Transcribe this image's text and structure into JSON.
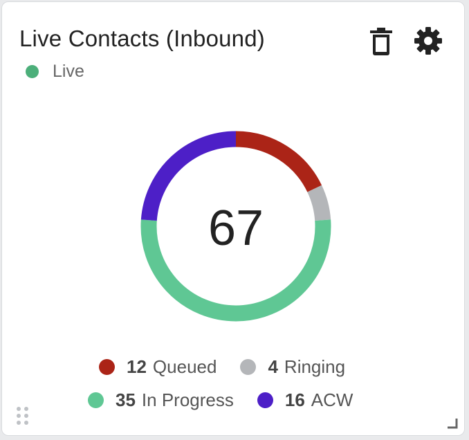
{
  "widget": {
    "title": "Live Contacts (Inbound)",
    "status_label": "Live",
    "status_color": "#4caf7a",
    "icons": {
      "delete": "trash-icon",
      "settings": "gear-icon",
      "drag": "drag-handle-icon",
      "resize": "resize-handle-icon"
    }
  },
  "chart_data": {
    "type": "pie",
    "subtype": "donut",
    "center_label": "67",
    "total": 67,
    "slices": [
      {
        "label": "Queued",
        "value": 12,
        "color": "#ab2417"
      },
      {
        "label": "Ringing",
        "value": 4,
        "color": "#b4b6b9"
      },
      {
        "label": "In Progress",
        "value": 35,
        "color": "#5fc794"
      },
      {
        "label": "ACW",
        "value": 16,
        "color": "#4d1fc7"
      }
    ]
  }
}
